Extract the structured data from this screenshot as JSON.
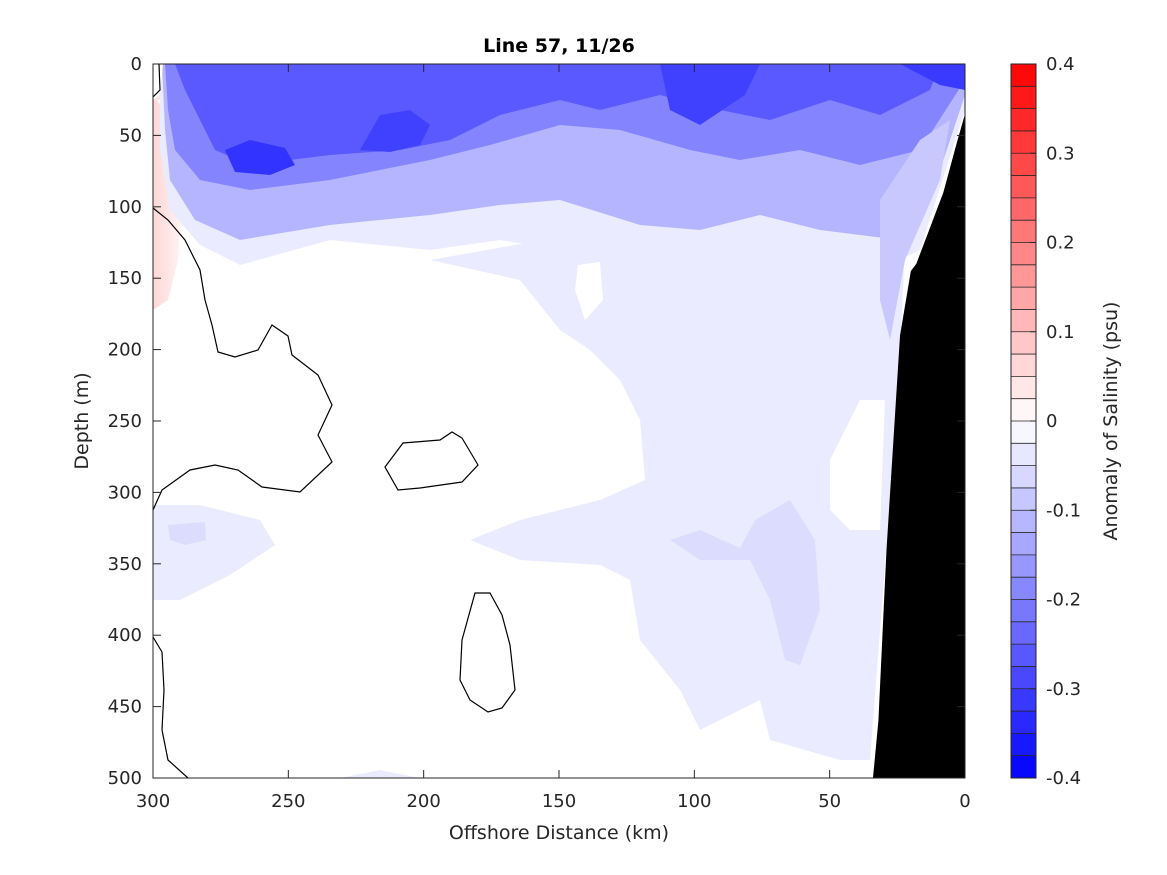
{
  "chart_data": {
    "type": "heatmap",
    "subtype": "filled-contour section",
    "title": "Line 57, 11/26",
    "xlabel": "Offshore Distance (km)",
    "ylabel": "Depth (m)",
    "x_axis_reversed": true,
    "y_axis_reversed": true,
    "xlim": [
      0,
      300
    ],
    "ylim": [
      0,
      500
    ],
    "x_ticks": [
      300,
      250,
      200,
      150,
      100,
      50,
      0
    ],
    "y_ticks": [
      0,
      50,
      100,
      150,
      200,
      250,
      300,
      350,
      400,
      450,
      500
    ],
    "grid": false,
    "colorbar": {
      "label": "Anomaly of Salinity (psu)",
      "range": [
        -0.4,
        0.4
      ],
      "levels": 32,
      "ticks": [
        0.4,
        0.3,
        0.2,
        0.1,
        0,
        -0.1,
        -0.2,
        -0.3,
        -0.4
      ],
      "tick_labels": [
        "0.4",
        "0.3",
        "0.2",
        "0.1",
        "0",
        "-0.1",
        "-0.2",
        "-0.3",
        "-0.4"
      ],
      "colormap": "blue-white-red",
      "low_color": "#0000ff",
      "mid_color": "#ffffff",
      "high_color": "#ff0000"
    },
    "zero_contour_color": "#000000",
    "seafloor_mask_color": "#000000",
    "seafloor_profile": {
      "x": [
        0,
        3,
        8,
        13,
        18,
        20,
        24,
        29,
        32,
        34
      ],
      "depth": [
        35,
        55,
        90,
        115,
        140,
        145,
        190,
        340,
        460,
        500
      ]
    },
    "anomaly_regions": [
      {
        "name": "surface fresh layer",
        "anomaly_min": -0.35,
        "anomaly_max": -0.05,
        "depth_range": [
          0,
          150
        ]
      },
      {
        "name": "nearshore subsurface low",
        "anomaly_min": -0.1,
        "anomaly_max": -0.025,
        "depth_range": [
          150,
          480
        ]
      },
      {
        "name": "offshore coastal-edge positive",
        "anomaly_min": 0.0,
        "anomaly_max": 0.05,
        "depth_range": [
          100,
          300
        ]
      },
      {
        "name": "core minimum near 257 km",
        "anomaly_min": -0.375,
        "anomaly_max": -0.325,
        "depth_range": [
          55,
          80
        ]
      }
    ]
  }
}
